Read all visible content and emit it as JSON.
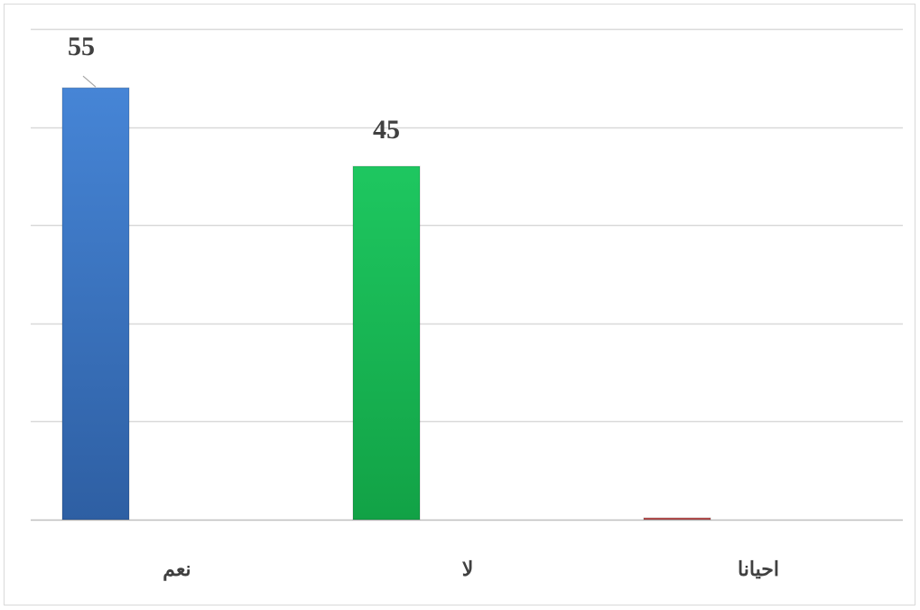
{
  "chart_data": {
    "type": "bar",
    "categories": [
      "نعم",
      "لا",
      "احيانا"
    ],
    "values": [
      55,
      45,
      0
    ],
    "data_labels": [
      "55",
      "45",
      ""
    ],
    "title": "",
    "xlabel": "",
    "ylabel": "",
    "ylim": [
      0,
      62.5
    ],
    "gridlines": [
      0,
      12.5,
      25,
      37.5,
      50,
      62.5
    ],
    "grid": true,
    "legend": "none",
    "colors": [
      "#3a70c0",
      "#17b352",
      "#c0504d"
    ]
  }
}
